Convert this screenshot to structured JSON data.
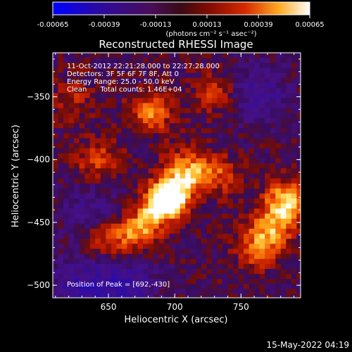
{
  "colorbar": {
    "ticks": [
      "-0.00065",
      "-0.00039",
      "-0.00013",
      "0.00013",
      "0.00039",
      "0.00065"
    ],
    "unit_label": "(photons cm⁻² s⁻¹ asec⁻²)",
    "colors": [
      "#0000ff",
      "#2b0a8c",
      "#541366",
      "#7a0e0e",
      "#c61a00",
      "#ff6600",
      "#ffcc33",
      "#ffffff"
    ]
  },
  "chart": {
    "title": "Reconstructed RHESSI Image",
    "info_lines": [
      "11-Oct-2012 22:21:28.000 to 22:27:28.000",
      "Detectors: 3F 5F 6F 7F 8F, Att 0",
      "Energy Range: 25.0 - 50.0 keV",
      "Clean      Total counts: 1.46E+04"
    ],
    "peak_text": "Position of Peak = [692,-430]",
    "xlabel": "Heliocentric X (arcsec)",
    "ylabel": "Heliocentric Y (arcsec)"
  },
  "chart_data": {
    "type": "heatmap",
    "title": "Reconstructed RHESSI Image",
    "xlabel": "Heliocentric X (arcsec)",
    "ylabel": "Heliocentric Y (arcsec)",
    "xlim": [
      608,
      795
    ],
    "ylim": [
      -510,
      -315
    ],
    "xticks": [
      650,
      700,
      750
    ],
    "yticks": [
      -350,
      -400,
      -450,
      -500
    ],
    "color_range": [
      -0.00065,
      0.00065
    ],
    "peak": [
      692,
      -430
    ],
    "sources": [
      {
        "x": 692,
        "y": -430,
        "level": 1.0
      },
      {
        "x": 705,
        "y": -405,
        "level": 0.55
      },
      {
        "x": 670,
        "y": -455,
        "level": 0.55
      },
      {
        "x": 783,
        "y": -432,
        "level": 0.9
      },
      {
        "x": 770,
        "y": -455,
        "level": 0.6
      },
      {
        "x": 680,
        "y": -360,
        "level": 0.6
      },
      {
        "x": 730,
        "y": -410,
        "level": 0.45
      },
      {
        "x": 640,
        "y": -398,
        "level": 0.45
      },
      {
        "x": 730,
        "y": -345,
        "level": 0.4
      },
      {
        "x": 645,
        "y": -460,
        "level": 0.45
      },
      {
        "x": 620,
        "y": -350,
        "level": 0.3
      },
      {
        "x": 760,
        "y": -470,
        "level": 0.4
      }
    ],
    "cold_regions": [
      {
        "x": 625,
        "y": -500,
        "level": -0.45
      },
      {
        "x": 660,
        "y": -500,
        "level": -0.5
      },
      {
        "x": 760,
        "y": -345,
        "level": -0.4
      },
      {
        "x": 635,
        "y": -440,
        "level": -0.3
      }
    ]
  },
  "footer": {
    "timestamp": "15-May-2022 04:19"
  }
}
